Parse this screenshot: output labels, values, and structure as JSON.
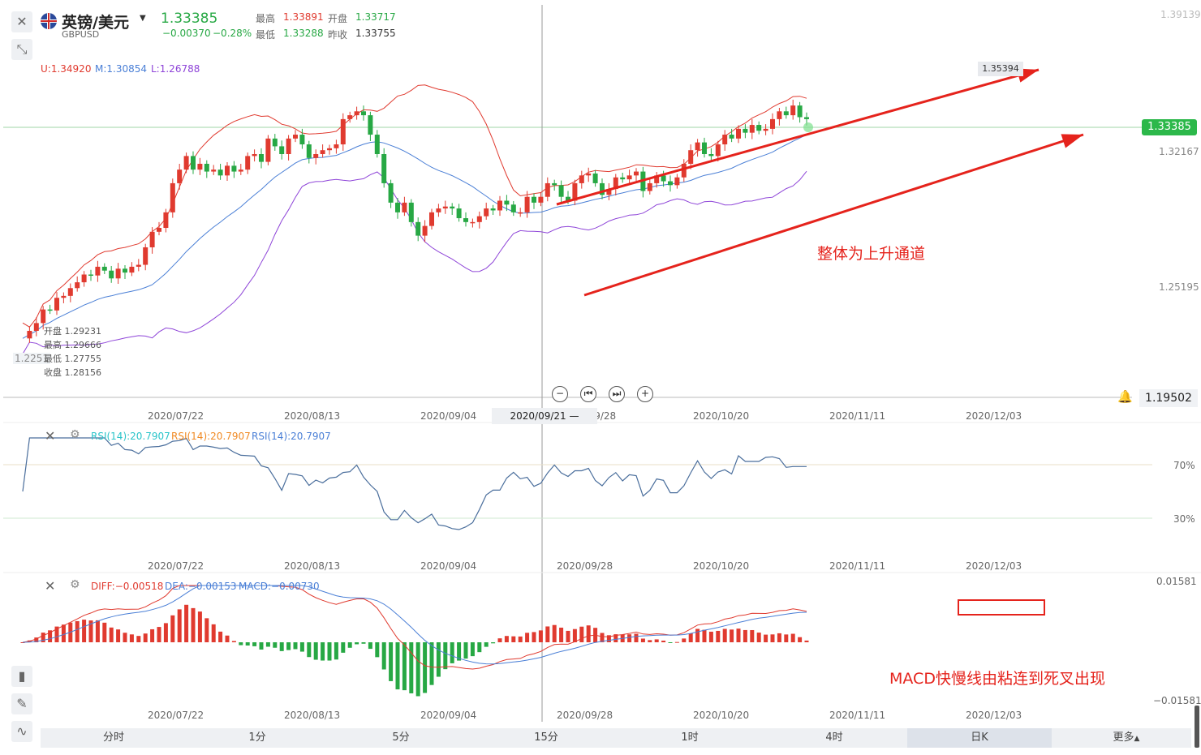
{
  "header": {
    "title": "英镑/美元",
    "symbol": "GBPUSD",
    "price": "1.33385",
    "change": "−0.00370",
    "change_pct": "−0.28%",
    "high_label": "最高",
    "high": "1.33891",
    "open_label": "开盘",
    "open": "1.33717",
    "low_label": "最低",
    "low": "1.33288",
    "prev_label": "昨收",
    "prev_close": "1.33755"
  },
  "bollinger": {
    "upper": "U:1.34920",
    "middle": "M:1.30854",
    "lower": "L:1.26788"
  },
  "price_axis": {
    "top": "1.39139",
    "p2": "1.32167",
    "p3": "1.25195",
    "left_partial": "1.2251",
    "current": "1.33385",
    "crosshair_price": "1.19502",
    "marker_price": "1.35394"
  },
  "candle_tooltip": [
    "开盘 1.29231",
    "最高 1.29666",
    "最低 1.27755",
    "收盘 1.28156"
  ],
  "x_axis_dates": [
    "2020/07/22",
    "2020/08/13",
    "2020/09/04",
    "2020/09/28",
    "2020/10/20",
    "2020/11/11",
    "2020/12/03"
  ],
  "crosshair_date": "2020/09/21 —",
  "annotations": {
    "trend_text": "整体为上升通道",
    "macd_text": "MACD快慢线由粘连到死叉出现"
  },
  "rsi": {
    "labels": [
      "RSI(14):20.7907",
      "RSI(14):20.7907",
      "RSI(14):20.7907"
    ],
    "label_colors": [
      "#29c4c9",
      "#f08a24",
      "#4a7fd6"
    ],
    "level_70": "70%",
    "level_30": "30%"
  },
  "macd": {
    "diff": "DIFF:−0.00518",
    "dea": "DEA:−0.00153",
    "macd": "MACD:−0.00730",
    "axis_top": "0.01581",
    "axis_bottom": "−0.01581"
  },
  "toolbar": {
    "items": [
      "分时",
      "1分",
      "5分",
      "15分",
      "1时",
      "4时",
      "日K",
      "更多"
    ],
    "active": "日K"
  },
  "colors": {
    "up": "#e03a2f",
    "down": "#27a844",
    "mid_band": "#4a7fd6",
    "lower_band": "#8e44d8",
    "rsi_line": "#4a6e9c"
  },
  "chart_data": {
    "type": "candlestick",
    "symbol": "GBPUSD",
    "x_ticks": [
      "2020/07/22",
      "2020/08/13",
      "2020/09/04",
      "2020/09/28",
      "2020/10/20",
      "2020/11/11",
      "2020/12/03"
    ],
    "price_range": [
      1.19502,
      1.39139
    ],
    "close": [
      1.2251,
      1.229,
      1.233,
      1.24,
      1.2395,
      1.246,
      1.247,
      1.251,
      1.254,
      1.258,
      1.2575,
      1.262,
      1.26,
      1.256,
      1.261,
      1.259,
      1.262,
      1.263,
      1.272,
      1.28,
      1.282,
      1.29,
      1.305,
      1.312,
      1.319,
      1.312,
      1.315,
      1.311,
      1.312,
      1.309,
      1.314,
      1.311,
      1.312,
      1.319,
      1.32,
      1.316,
      1.328,
      1.324,
      1.32,
      1.328,
      1.33,
      1.325,
      1.318,
      1.32,
      1.322,
      1.323,
      1.325,
      1.338,
      1.34,
      1.342,
      1.34,
      1.33,
      1.32,
      1.305,
      1.295,
      1.29,
      1.295,
      1.285,
      1.278,
      1.283,
      1.29,
      1.292,
      1.293,
      1.292,
      1.287,
      1.285,
      1.285,
      1.288,
      1.292,
      1.291,
      1.296,
      1.294,
      1.29,
      1.29,
      1.298,
      1.295,
      1.298,
      1.305,
      1.304,
      1.298,
      1.296,
      1.305,
      1.309,
      1.31,
      1.305,
      1.299,
      1.302,
      1.308,
      1.307,
      1.309,
      1.311,
      1.301,
      1.305,
      1.309,
      1.306,
      1.304,
      1.308,
      1.315,
      1.322,
      1.326,
      1.32,
      1.319,
      1.325,
      1.33,
      1.328,
      1.333,
      1.331,
      1.335,
      1.332,
      1.333,
      1.338,
      1.342,
      1.34,
      1.345,
      1.339,
      1.338
    ],
    "indicators": {
      "bollinger": {
        "upper": 1.3492,
        "middle": 1.30854,
        "lower": 1.26788
      },
      "rsi14": 20.7907,
      "macd": {
        "diff": -0.00518,
        "dea": -0.00153,
        "macd": -0.0073
      }
    }
  }
}
